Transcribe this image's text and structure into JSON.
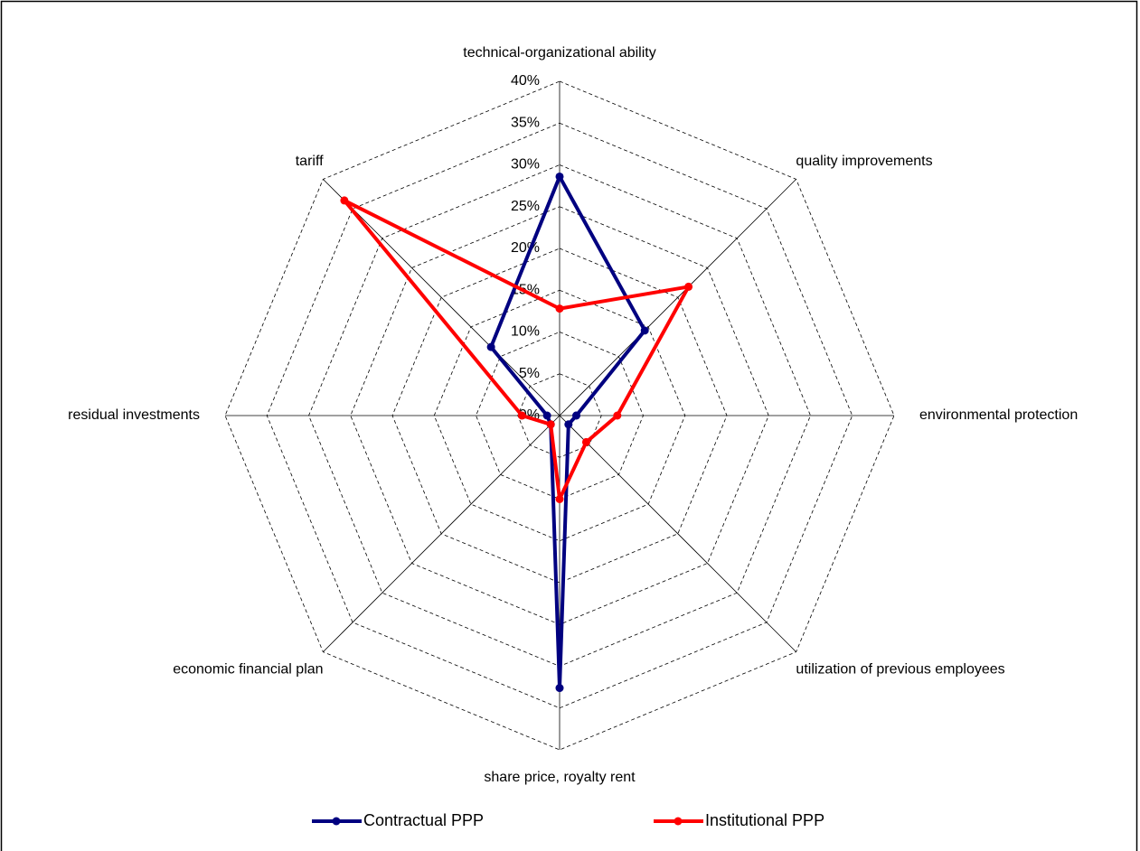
{
  "chart_data": {
    "type": "radar",
    "categories": [
      "technical-organizational ability",
      "quality improvements",
      "environmental protection",
      "utilization of previous employees",
      "share price, royalty rent",
      "economic financial plan",
      "residual investments",
      "tariff"
    ],
    "series": [
      {
        "name": "Contractual PPP",
        "color": "#000080",
        "values": [
          28.6,
          14.4,
          2,
          1.5,
          32.6,
          1.5,
          1.5,
          11.6
        ]
      },
      {
        "name": "Institutional PPP",
        "color": "#ff0000",
        "values": [
          12.8,
          21.8,
          6.9,
          4.5,
          10,
          1.5,
          4.5,
          36.4
        ]
      }
    ],
    "ylim": [
      0,
      40
    ],
    "yticks": [
      {
        "value": 0,
        "label": "0%"
      },
      {
        "value": 5,
        "label": "5%"
      },
      {
        "value": 10,
        "label": "10%"
      },
      {
        "value": 15,
        "label": "15%"
      },
      {
        "value": 20,
        "label": "20%"
      },
      {
        "value": 25,
        "label": "25%"
      },
      {
        "value": 30,
        "label": "30%"
      },
      {
        "value": 35,
        "label": "35%"
      },
      {
        "value": 40,
        "label": "40%"
      }
    ],
    "grid": true,
    "legend": "bottom"
  }
}
